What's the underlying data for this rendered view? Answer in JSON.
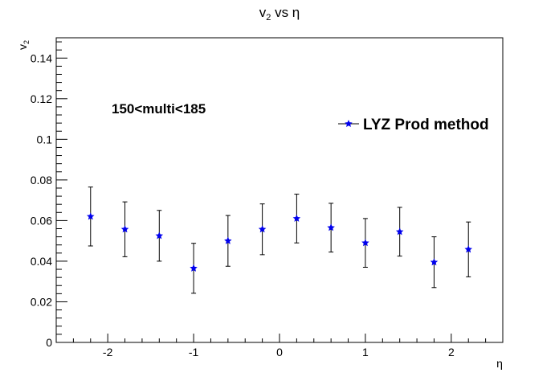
{
  "chart_data": {
    "type": "scatter",
    "title": "v",
    "title_sub": "2",
    "title_rest": " vs η",
    "xlabel": "η",
    "ylabel": "v",
    "ylabel_sub": "2",
    "xlim": [
      -2.6,
      2.6
    ],
    "ylim": [
      0,
      0.15
    ],
    "x_ticks": [
      -2,
      -1,
      0,
      1,
      2
    ],
    "x_tick_labels": [
      "-2",
      "-1",
      "0",
      "1",
      "2"
    ],
    "y_ticks": [
      0,
      0.02,
      0.04,
      0.06,
      0.08,
      0.1,
      0.12,
      0.14
    ],
    "y_tick_labels": [
      "0",
      "0.02",
      "0.04",
      "0.06",
      "0.08",
      "0.1",
      "0.12",
      "0.14"
    ],
    "grid": false,
    "annotation": "150<multi<185",
    "legend_placement": "right",
    "marker_color": "#0000ee",
    "series": [
      {
        "name": "LYZ Prod method",
        "x": [
          -2.2,
          -1.8,
          -1.4,
          -1.0,
          -0.6,
          -0.2,
          0.2,
          0.6,
          1.0,
          1.4,
          1.8,
          2.2
        ],
        "y": [
          0.062,
          0.0557,
          0.0525,
          0.0365,
          0.05,
          0.0557,
          0.061,
          0.0565,
          0.049,
          0.0545,
          0.0395,
          0.0458
        ],
        "err": [
          0.0145,
          0.0135,
          0.0125,
          0.0123,
          0.0125,
          0.0125,
          0.012,
          0.012,
          0.012,
          0.012,
          0.0125,
          0.0135
        ]
      }
    ]
  }
}
